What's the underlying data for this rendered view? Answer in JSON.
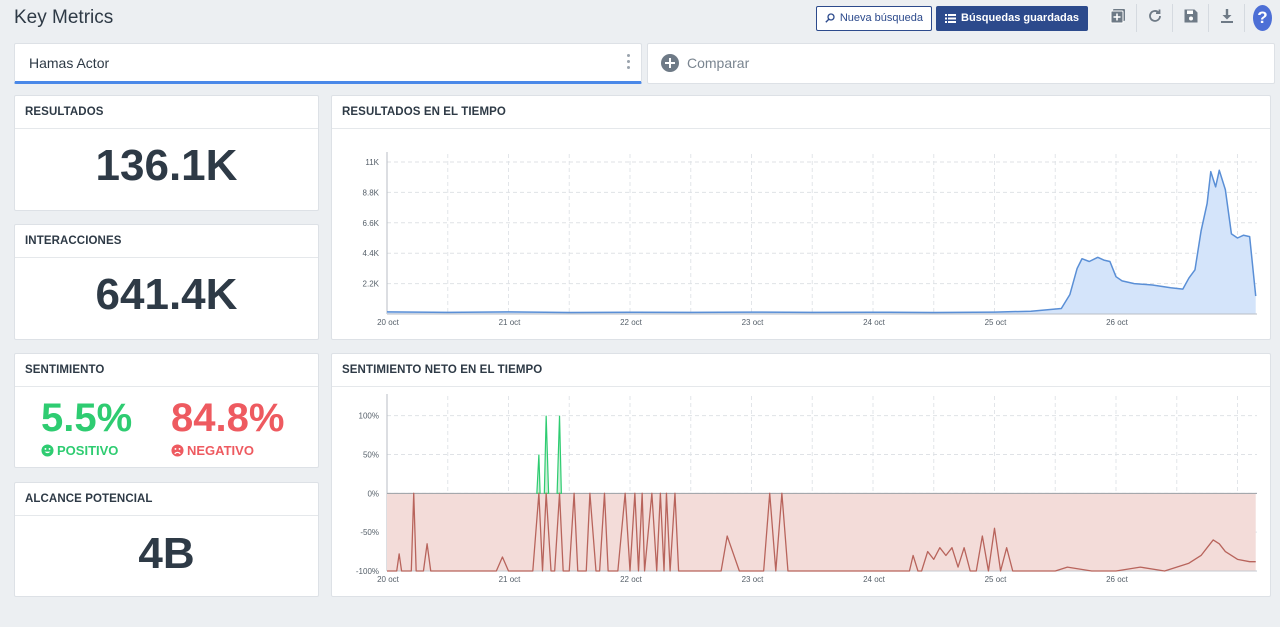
{
  "header": {
    "title": "Key Metrics",
    "new_search_label": "Nueva búsqueda",
    "saved_searches_label": "Búsquedas guardadas",
    "tools": [
      "add-widget-icon",
      "refresh-icon",
      "save-icon",
      "download-icon"
    ],
    "help_label": "?"
  },
  "queries": {
    "primary": "Hamas Actor",
    "compare_label": "Comparar"
  },
  "kpis": {
    "resultados": {
      "title": "RESULTADOS",
      "value": "136.1K"
    },
    "interacciones": {
      "title": "INTERACCIONES",
      "value": "641.4K"
    },
    "sentimiento": {
      "title": "SENTIMIENTO",
      "positive_value": "5.5%",
      "positive_label": "POSITIVO",
      "negative_value": "84.8%",
      "negative_label": "NEGATIVO"
    },
    "alcance": {
      "title": "ALCANCE POTENCIAL",
      "value": "4B"
    }
  },
  "colors": {
    "accent": "#2c4a8c",
    "positive": "#2ecc71",
    "negative": "#ee5a60",
    "results_line": "#5a8fd6",
    "results_fill": "#d4e4fa",
    "sentiment_line": "#b8645c",
    "sentiment_fill": "#f3dcd9"
  },
  "chart_data": [
    {
      "type": "area",
      "title": "RESULTADOS EN EL TIEMPO",
      "x_ticks": [
        "20 oct",
        "21 oct",
        "22 oct",
        "23 oct",
        "24 oct",
        "25 oct",
        "26 oct"
      ],
      "y_ticks": [
        "2.2K",
        "4.4K",
        "6.6K",
        "8.8K",
        "11K"
      ],
      "y_tick_values": [
        2200,
        4400,
        6600,
        8800,
        11000
      ],
      "ylim": [
        0,
        11000
      ],
      "grid": true,
      "series": [
        {
          "x": [
            0,
            0.5,
            1,
            1.5,
            2,
            2.5,
            3,
            3.5,
            4,
            4.5,
            5,
            5.3,
            5.55,
            5.62,
            5.68,
            5.72,
            5.78,
            5.85,
            5.9,
            5.95,
            6.0,
            6.05,
            6.15,
            6.3,
            6.45,
            6.55,
            6.6,
            6.65,
            6.7,
            6.75,
            6.78,
            6.82,
            6.85,
            6.9,
            6.95,
            7.0,
            7.05,
            7.1,
            7.15
          ],
          "values": [
            150,
            120,
            150,
            110,
            130,
            120,
            140,
            120,
            130,
            110,
            140,
            200,
            400,
            1400,
            3300,
            4000,
            3800,
            4100,
            3900,
            3800,
            2700,
            2400,
            2200,
            2100,
            1900,
            1800,
            2600,
            3200,
            6000,
            8000,
            10300,
            9200,
            10400,
            9000,
            5800,
            5500,
            5700,
            5600,
            1300
          ]
        }
      ]
    },
    {
      "type": "area",
      "title": "SENTIMIENTO NETO EN EL TIEMPO",
      "x_ticks": [
        "20 oct",
        "21 oct",
        "22 oct",
        "23 oct",
        "24 oct",
        "25 oct",
        "26 oct"
      ],
      "y_ticks": [
        "-100%",
        "-50%",
        "0%",
        "50%",
        "100%"
      ],
      "y_tick_values": [
        -100,
        -50,
        0,
        50,
        100
      ],
      "ylim": [
        -100,
        115
      ],
      "grid": true,
      "series": [
        {
          "x": [
            0,
            0.08,
            0.1,
            0.12,
            0.2,
            0.22,
            0.24,
            0.3,
            0.33,
            0.36,
            0.4,
            0.6,
            0.9,
            0.95,
            1.0,
            1.2,
            1.25,
            1.28,
            1.31,
            1.35,
            1.38,
            1.42,
            1.45,
            1.5,
            1.54,
            1.57,
            1.6,
            1.64,
            1.67,
            1.72,
            1.75,
            1.79,
            1.82,
            1.9,
            1.96,
            2.0,
            2.04,
            2.07,
            2.1,
            2.12,
            2.18,
            2.22,
            2.25,
            2.28,
            2.3,
            2.33,
            2.37,
            2.4,
            2.45,
            2.5,
            2.7,
            2.75,
            2.8,
            2.9,
            3.1,
            3.15,
            3.2,
            3.25,
            3.3,
            3.35,
            3.4,
            3.6,
            4.0,
            4.3,
            4.33,
            4.37,
            4.4,
            4.45,
            4.5,
            4.55,
            4.6,
            4.65,
            4.7,
            4.75,
            4.8,
            4.85,
            4.9,
            4.95,
            5.0,
            5.05,
            5.1,
            5.15,
            5.2,
            5.5,
            5.6,
            5.8,
            6.0,
            6.2,
            6.4,
            6.6,
            6.7,
            6.75,
            6.8,
            6.85,
            6.9,
            7.0,
            7.1,
            7.15
          ],
          "values": [
            -100,
            -100,
            -78,
            -100,
            -100,
            0,
            -100,
            -100,
            -65,
            -100,
            -100,
            -100,
            -100,
            -82,
            -100,
            -100,
            50,
            -100,
            100,
            -100,
            -100,
            100,
            -100,
            -100,
            0,
            -100,
            -100,
            -100,
            0,
            -100,
            -100,
            0,
            -100,
            -100,
            0,
            -100,
            0,
            -100,
            0,
            -100,
            0,
            -100,
            0,
            -100,
            0,
            -100,
            0,
            -100,
            -100,
            -100,
            -100,
            -100,
            -55,
            -100,
            -100,
            0,
            -100,
            0,
            -100,
            -100,
            -100,
            -100,
            -100,
            -100,
            -80,
            -100,
            -100,
            -75,
            -85,
            -70,
            -80,
            -70,
            -95,
            -70,
            -100,
            -100,
            -55,
            -100,
            -45,
            -100,
            -70,
            -100,
            -100,
            -100,
            -95,
            -100,
            -100,
            -95,
            -100,
            -90,
            -80,
            -70,
            -60,
            -65,
            -75,
            -85,
            -88,
            -88
          ]
        }
      ]
    }
  ]
}
